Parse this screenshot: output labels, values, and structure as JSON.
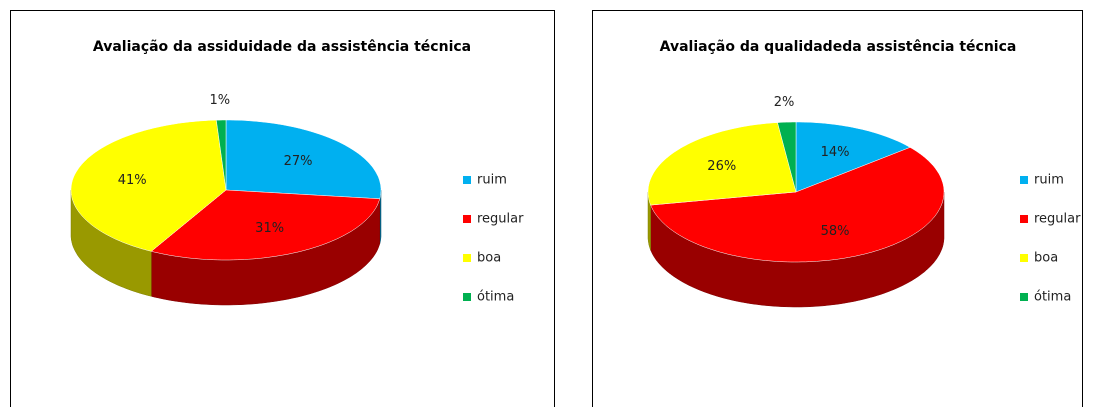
{
  "chart_data": [
    {
      "type": "pie",
      "title": "Avaliação da assiduidade da assistência técnica",
      "categories": [
        "ruim",
        "regular",
        "boa",
        "ótima"
      ],
      "values": [
        27,
        31,
        41,
        1
      ],
      "value_labels": [
        "27%",
        "31%",
        "41%",
        "1%"
      ],
      "colors": [
        "#00b0f0",
        "#ff0000",
        "#ffff00",
        "#00b050"
      ],
      "legend": "right"
    },
    {
      "type": "pie",
      "title": "Avaliação da qualidadeda assistência técnica",
      "categories": [
        "ruim",
        "regular",
        "boa",
        "ótima"
      ],
      "values": [
        14,
        58,
        26,
        2
      ],
      "value_labels": [
        "14%",
        "58%",
        "26%",
        "2%"
      ],
      "colors": [
        "#00b0f0",
        "#ff0000",
        "#ffff00",
        "#00b050"
      ],
      "legend": "right"
    }
  ]
}
